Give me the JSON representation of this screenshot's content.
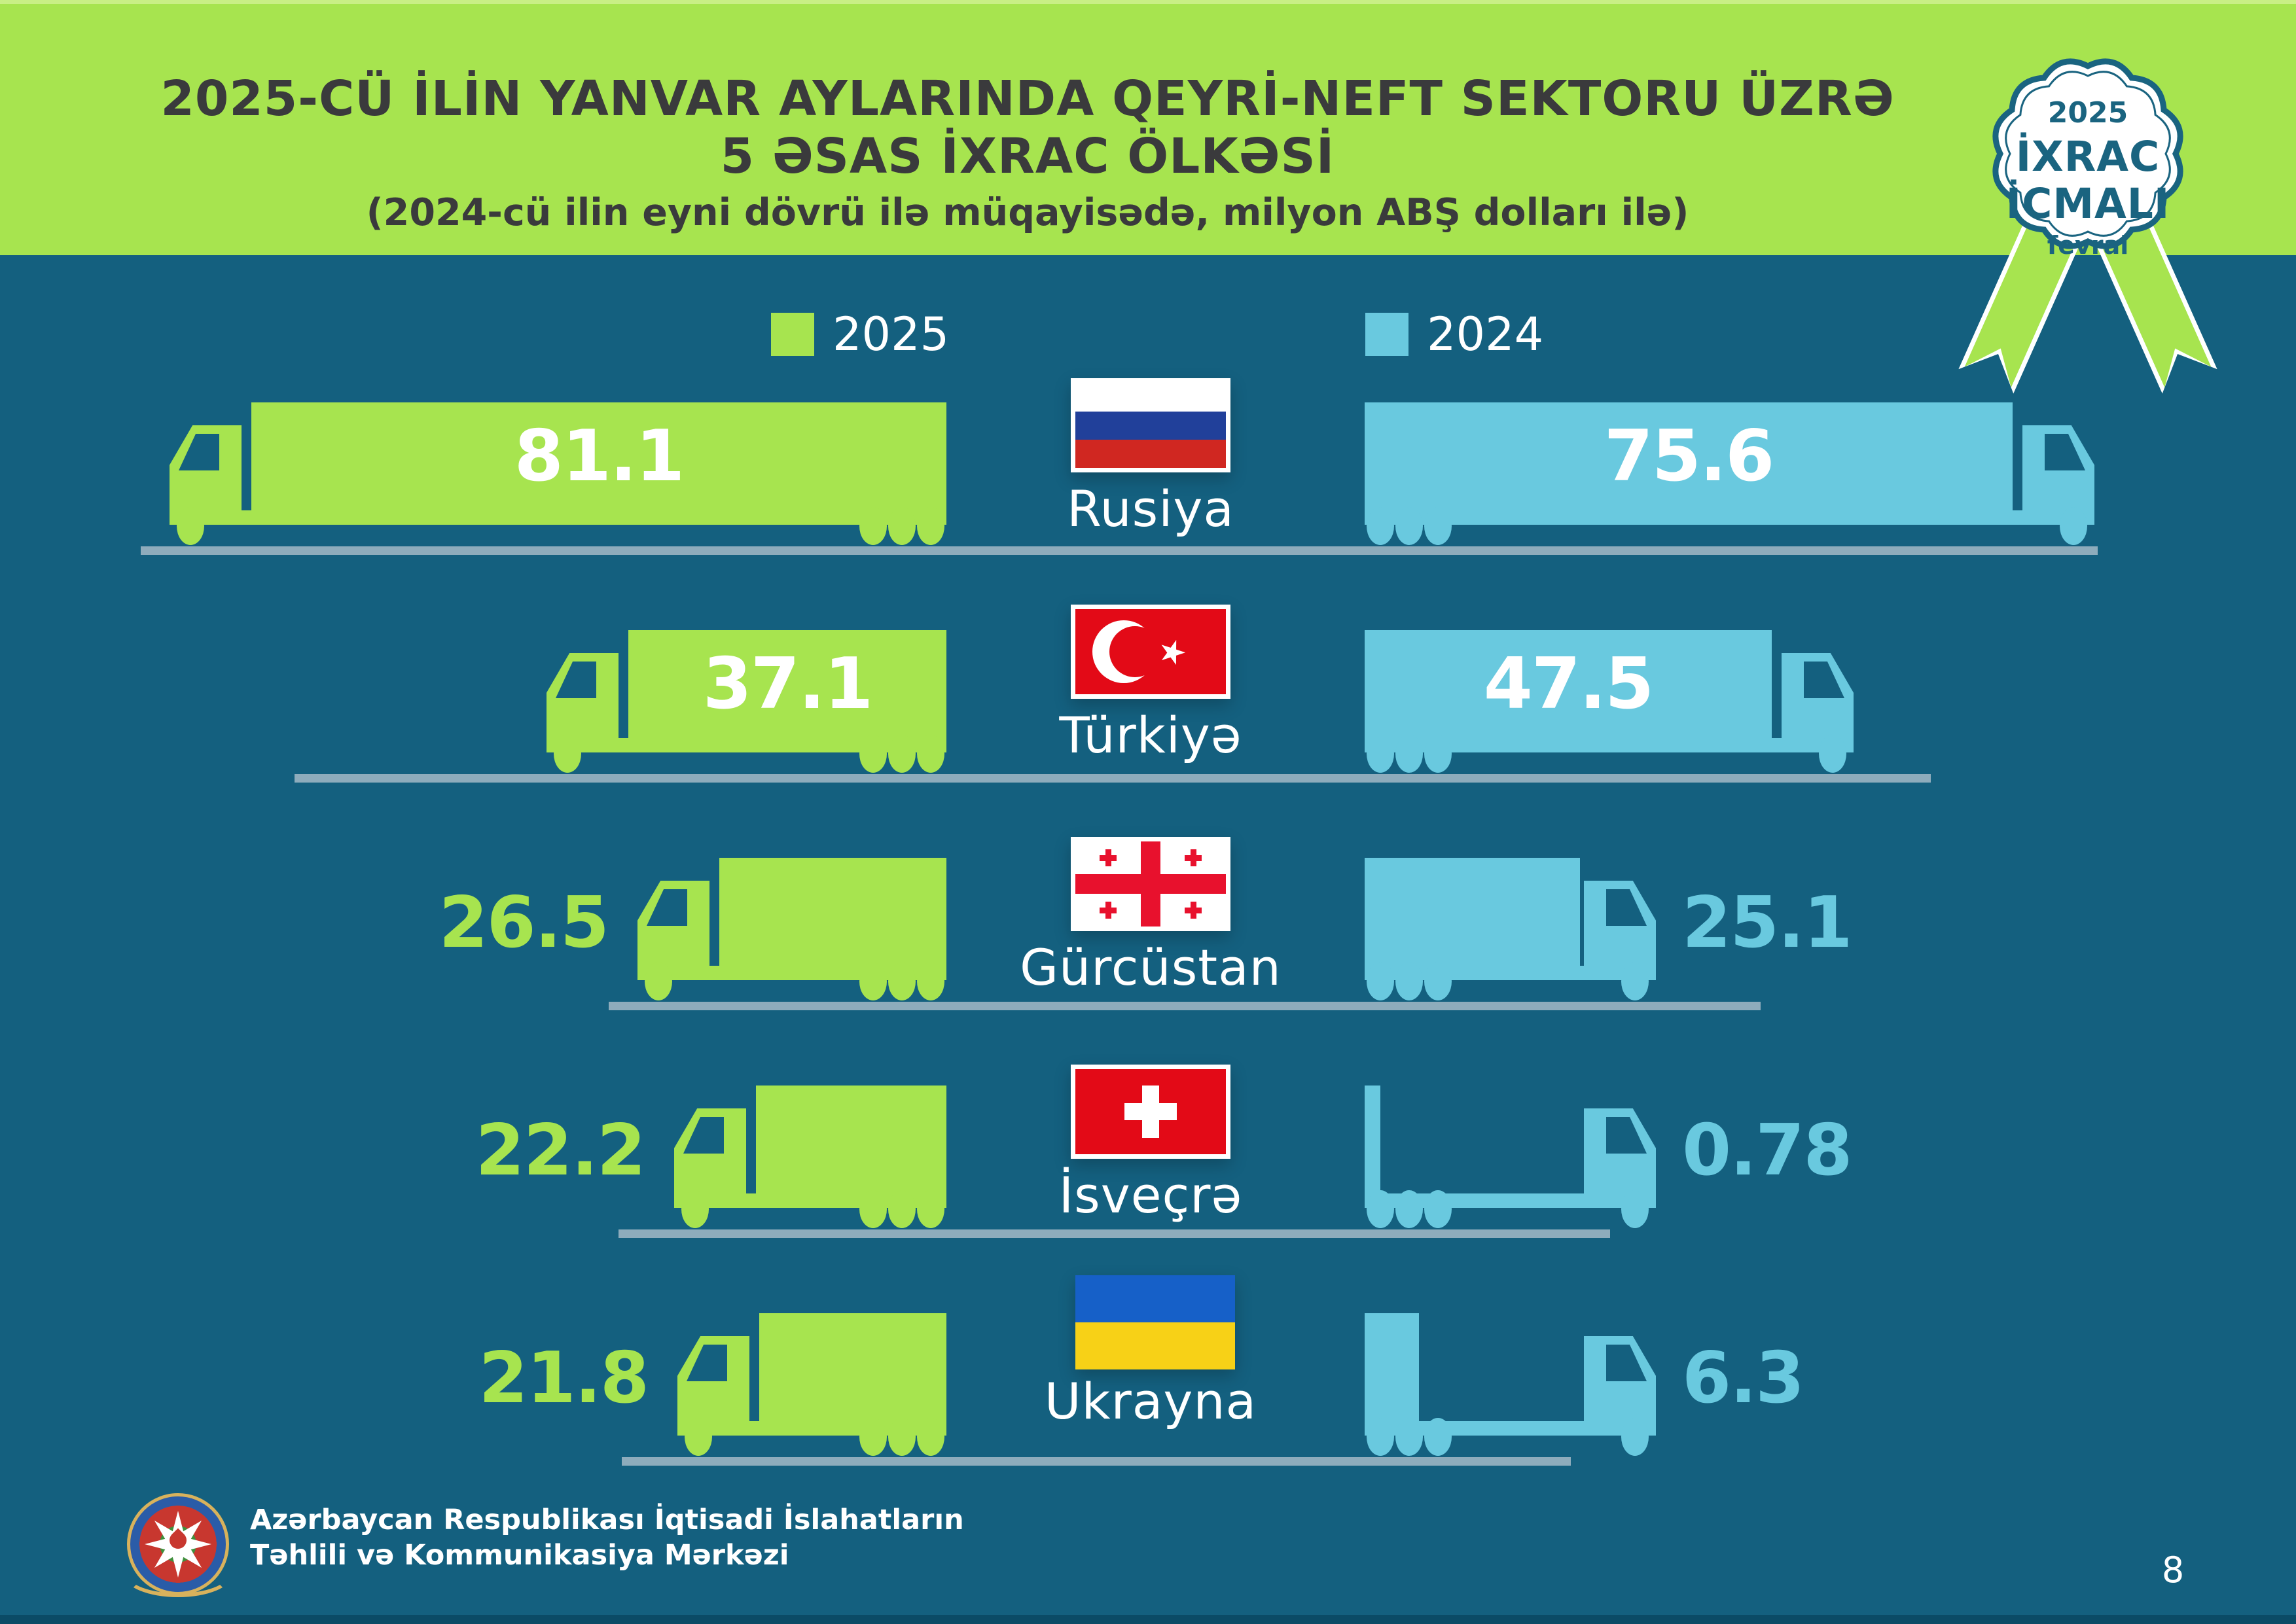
{
  "header": {
    "title_line1": "2025-CÜ İLİN YANVAR AYLARINDA QEYRİ-NEFT SEKTORU ÜZRƏ",
    "title_line2": "5 ƏSAS İXRAC ÖLKƏSİ",
    "subtitle": "(2024-cü ilin eyni dövrü ilə müqayisədə, milyon ABŞ dolları ilə)"
  },
  "badge": {
    "year": "2025",
    "title_line1": "İXRAC",
    "title_line2": "İCMALI",
    "month": "fevral"
  },
  "legend": {
    "items": [
      {
        "label": "2025",
        "color": "#A7E44F"
      },
      {
        "label": "2024",
        "color": "#69C9DF"
      }
    ]
  },
  "chart_data": {
    "type": "bar",
    "title": "2025-cü ilin yanvar aylarında qeyri-neft sektoru üzrə 5 əsas ixrac ölkəsi",
    "subtitle": "(2024-cü ilin eyni dövrü ilə müqayisədə, milyon ABŞ dolları ilə)",
    "unit": "milyon ABŞ dolları",
    "categories": [
      "Rusiya",
      "Türkiyə",
      "Gürcüstan",
      "İsveçrə",
      "Ukrayna"
    ],
    "series": [
      {
        "name": "2025",
        "color": "#A7E44F",
        "values": [
          81.1,
          37.1,
          26.5,
          22.2,
          21.8
        ]
      },
      {
        "name": "2024",
        "color": "#69C9DF",
        "values": [
          75.6,
          47.5,
          25.1,
          0.78,
          6.3
        ]
      }
    ],
    "legend_position": "top",
    "orientation": "horizontal",
    "style": "pictorial-truck-bars, values proportional to trailer length"
  },
  "rows": [
    {
      "country": "Rusiya",
      "flag": "ru",
      "value_2025": "81.1",
      "value_2024": "75.6"
    },
    {
      "country": "Türkiyə",
      "flag": "tr",
      "value_2025": "37.1",
      "value_2024": "47.5"
    },
    {
      "country": "Gürcüstan",
      "flag": "ge",
      "value_2025": "26.5",
      "value_2024": "25.1"
    },
    {
      "country": "İsveçrə",
      "flag": "ch",
      "value_2025": "22.2",
      "value_2024": "0.78"
    },
    {
      "country": "Ukrayna",
      "flag": "ua",
      "value_2025": "21.8",
      "value_2024": "6.3"
    }
  ],
  "footer": {
    "org_line1": "Azərbaycan Respublikası İqtisadi İslahatların",
    "org_line2": "Təhlili və Kommunikasiya Mərkəzi",
    "page": "8"
  },
  "colors": {
    "background": "#14607F",
    "header_green": "#A7E44F",
    "light_blue": "#69C9DF",
    "road": "#8EACBC",
    "title_text": "#3A3A3C",
    "badge_teal": "#1A6480",
    "white": "#FFFFFF",
    "flag_red": "#E30A17",
    "georgia_red": "#E8112D",
    "russia_blue": "#21409A",
    "russia_red": "#D02721",
    "ukraine_blue": "#1660C8",
    "ukraine_yellow": "#F7D117"
  }
}
